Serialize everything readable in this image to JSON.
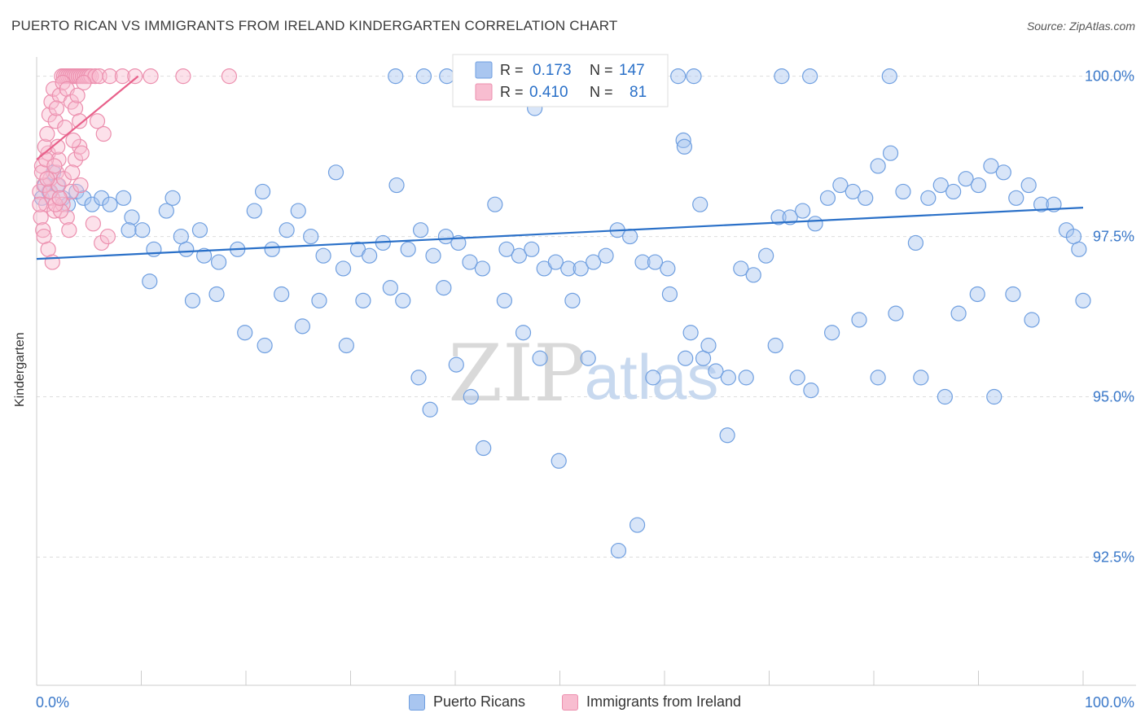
{
  "title": "PUERTO RICAN VS IMMIGRANTS FROM IRELAND KINDERGARTEN CORRELATION CHART",
  "source": "Source: ZipAtlas.com",
  "watermark": {
    "zip": "ZIP",
    "atlas": "atlas"
  },
  "chart_data": {
    "type": "scatter",
    "xlabel": "",
    "ylabel": "Kindergarten",
    "xlim": [
      0,
      100
    ],
    "ylim": [
      90.5,
      100.3
    ],
    "x_ticks": [
      "0.0%",
      "100.0%"
    ],
    "y_ticks": [
      {
        "value": 100.0,
        "label": "100.0%"
      },
      {
        "value": 97.5,
        "label": "97.5%"
      },
      {
        "value": 95.0,
        "label": "95.0%"
      },
      {
        "value": 92.5,
        "label": "92.5%"
      }
    ],
    "stats": [
      {
        "r_label": "R =",
        "r": "0.173",
        "n_label": "N =",
        "n": "147"
      },
      {
        "r_label": "R =",
        "r": "0.410",
        "n_label": "N =",
        "n": "81"
      }
    ],
    "series": [
      {
        "name": "Puerto Ricans",
        "color": "#6f9fe0",
        "fill": "#a9c6f0",
        "line_color": "#2a70c8",
        "trend": {
          "x": [
            0,
            100
          ],
          "y": [
            97.15,
            97.95
          ]
        },
        "points": [
          [
            0.5,
            98.1
          ],
          [
            0.8,
            98.3
          ],
          [
            1.2,
            98.2
          ],
          [
            1.6,
            98.5
          ],
          [
            2.0,
            98.3
          ],
          [
            2.5,
            98.1
          ],
          [
            3.0,
            98.0
          ],
          [
            3.8,
            98.2
          ],
          [
            4.5,
            98.1
          ],
          [
            5.3,
            98.0
          ],
          [
            6.2,
            98.1
          ],
          [
            7.0,
            98.0
          ],
          [
            8.3,
            98.1
          ],
          [
            9.1,
            97.8
          ],
          [
            8.8,
            97.6
          ],
          [
            10.1,
            97.6
          ],
          [
            11.2,
            97.3
          ],
          [
            12.4,
            97.9
          ],
          [
            13.0,
            98.1
          ],
          [
            13.8,
            97.5
          ],
          [
            14.3,
            97.3
          ],
          [
            15.6,
            97.6
          ],
          [
            16.0,
            97.2
          ],
          [
            17.4,
            97.1
          ],
          [
            19.2,
            97.3
          ],
          [
            20.8,
            97.9
          ],
          [
            21.6,
            98.2
          ],
          [
            22.5,
            97.3
          ],
          [
            23.9,
            97.6
          ],
          [
            25.0,
            97.9
          ],
          [
            26.2,
            97.5
          ],
          [
            27.4,
            97.2
          ],
          [
            28.6,
            98.5
          ],
          [
            29.3,
            97.0
          ],
          [
            30.7,
            97.3
          ],
          [
            31.8,
            97.2
          ],
          [
            33.1,
            97.4
          ],
          [
            34.4,
            98.3
          ],
          [
            35.5,
            97.3
          ],
          [
            36.7,
            97.6
          ],
          [
            37.9,
            97.2
          ],
          [
            39.1,
            97.5
          ],
          [
            40.3,
            97.4
          ],
          [
            41.4,
            97.1
          ],
          [
            42.6,
            97.0
          ],
          [
            43.8,
            98.0
          ],
          [
            44.9,
            97.3
          ],
          [
            46.1,
            97.2
          ],
          [
            47.3,
            97.3
          ],
          [
            48.5,
            97.0
          ],
          [
            49.6,
            97.1
          ],
          [
            50.8,
            97.0
          ],
          [
            52.0,
            97.0
          ],
          [
            53.2,
            97.1
          ],
          [
            54.4,
            97.2
          ],
          [
            55.5,
            97.6
          ],
          [
            56.7,
            97.5
          ],
          [
            57.9,
            97.1
          ],
          [
            59.1,
            97.1
          ],
          [
            60.3,
            97.0
          ],
          [
            61.8,
            99.0
          ],
          [
            62.5,
            96.0
          ],
          [
            63.7,
            95.6
          ],
          [
            64.9,
            95.4
          ],
          [
            66.1,
            95.3
          ],
          [
            67.3,
            97.0
          ],
          [
            68.5,
            96.9
          ],
          [
            69.7,
            97.2
          ],
          [
            70.9,
            97.8
          ],
          [
            72.0,
            97.8
          ],
          [
            73.2,
            97.9
          ],
          [
            74.4,
            97.7
          ],
          [
            75.6,
            98.1
          ],
          [
            76.8,
            98.3
          ],
          [
            78.0,
            98.2
          ],
          [
            79.2,
            98.1
          ],
          [
            80.4,
            98.6
          ],
          [
            81.6,
            98.8
          ],
          [
            82.8,
            98.2
          ],
          [
            84.0,
            97.4
          ],
          [
            85.2,
            98.1
          ],
          [
            86.4,
            98.3
          ],
          [
            87.6,
            98.2
          ],
          [
            88.8,
            98.4
          ],
          [
            90.0,
            98.3
          ],
          [
            91.2,
            98.6
          ],
          [
            92.4,
            98.5
          ],
          [
            93.6,
            98.1
          ],
          [
            94.8,
            98.3
          ],
          [
            96.0,
            98.0
          ],
          [
            97.2,
            98.0
          ],
          [
            98.4,
            97.6
          ],
          [
            99.1,
            97.5
          ],
          [
            99.6,
            97.3
          ],
          [
            100,
            96.5
          ],
          [
            10.8,
            96.8
          ],
          [
            14.9,
            96.5
          ],
          [
            17.2,
            96.6
          ],
          [
            19.9,
            96.0
          ],
          [
            21.8,
            95.8
          ],
          [
            23.4,
            96.6
          ],
          [
            25.4,
            96.1
          ],
          [
            27.0,
            96.5
          ],
          [
            29.6,
            95.8
          ],
          [
            31.2,
            96.5
          ],
          [
            33.8,
            96.7
          ],
          [
            35.0,
            96.5
          ],
          [
            36.5,
            95.3
          ],
          [
            37.6,
            94.8
          ],
          [
            38.9,
            96.7
          ],
          [
            40.1,
            95.5
          ],
          [
            41.5,
            95.0
          ],
          [
            42.7,
            94.2
          ],
          [
            44.7,
            96.5
          ],
          [
            46.5,
            96.0
          ],
          [
            48.1,
            95.6
          ],
          [
            49.9,
            94.0
          ],
          [
            51.2,
            96.5
          ],
          [
            52.7,
            95.6
          ],
          [
            55.6,
            92.6
          ],
          [
            57.4,
            93.0
          ],
          [
            58.9,
            95.3
          ],
          [
            60.5,
            96.6
          ],
          [
            62.0,
            95.6
          ],
          [
            64.2,
            95.8
          ],
          [
            66.0,
            94.4
          ],
          [
            67.8,
            95.3
          ],
          [
            70.6,
            95.8
          ],
          [
            72.7,
            95.3
          ],
          [
            74.0,
            95.1
          ],
          [
            76.0,
            96.0
          ],
          [
            78.6,
            96.2
          ],
          [
            80.4,
            95.3
          ],
          [
            82.1,
            96.3
          ],
          [
            84.5,
            95.3
          ],
          [
            86.8,
            95.0
          ],
          [
            88.1,
            96.3
          ],
          [
            89.9,
            96.6
          ],
          [
            91.5,
            95.0
          ],
          [
            93.3,
            96.6
          ],
          [
            95.1,
            96.2
          ],
          [
            34.3,
            100.0
          ],
          [
            37.0,
            100.0
          ],
          [
            39.2,
            100.0
          ],
          [
            44.1,
            100.0
          ],
          [
            51.0,
            100.0
          ],
          [
            61.3,
            100.0
          ],
          [
            62.8,
            100.0
          ],
          [
            71.2,
            100.0
          ],
          [
            73.9,
            100.0
          ],
          [
            81.5,
            100.0
          ],
          [
            47.6,
            99.5
          ],
          [
            61.9,
            98.9
          ],
          [
            63.4,
            98.0
          ]
        ]
      },
      {
        "name": "Immigrants from Ireland",
        "color": "#ec8fae",
        "fill": "#f8bdd0",
        "line_color": "#e8608a",
        "trend": {
          "x": [
            0,
            9.7
          ],
          "y": [
            98.7,
            100.0
          ]
        },
        "points": [
          [
            0.3,
            98.2
          ],
          [
            0.5,
            98.6
          ],
          [
            0.7,
            98.3
          ],
          [
            0.9,
            98.0
          ],
          [
            1.1,
            98.8
          ],
          [
            1.3,
            98.4
          ],
          [
            1.5,
            98.1
          ],
          [
            1.7,
            97.9
          ],
          [
            1.9,
            98.5
          ],
          [
            2.1,
            98.7
          ],
          [
            0.4,
            97.8
          ],
          [
            0.6,
            97.6
          ],
          [
            0.8,
            98.9
          ],
          [
            1.0,
            99.1
          ],
          [
            1.2,
            99.4
          ],
          [
            1.4,
            99.6
          ],
          [
            1.6,
            99.8
          ],
          [
            1.8,
            99.3
          ],
          [
            2.0,
            98.9
          ],
          [
            2.2,
            99.7
          ],
          [
            2.4,
            100.0
          ],
          [
            2.6,
            100.0
          ],
          [
            2.8,
            100.0
          ],
          [
            3.0,
            100.0
          ],
          [
            3.2,
            100.0
          ],
          [
            3.4,
            100.0
          ],
          [
            3.6,
            100.0
          ],
          [
            3.8,
            100.0
          ],
          [
            4.0,
            100.0
          ],
          [
            4.2,
            100.0
          ],
          [
            4.4,
            100.0
          ],
          [
            4.6,
            100.0
          ],
          [
            4.8,
            100.0
          ],
          [
            5.0,
            100.0
          ],
          [
            5.2,
            100.0
          ],
          [
            2.5,
            99.9
          ],
          [
            2.9,
            99.8
          ],
          [
            3.3,
            99.6
          ],
          [
            3.7,
            99.5
          ],
          [
            4.1,
            99.3
          ],
          [
            0.5,
            98.5
          ],
          [
            0.9,
            98.7
          ],
          [
            1.3,
            98.2
          ],
          [
            1.7,
            98.6
          ],
          [
            2.1,
            98.3
          ],
          [
            2.5,
            98.0
          ],
          [
            2.9,
            97.8
          ],
          [
            3.3,
            98.2
          ],
          [
            3.7,
            98.7
          ],
          [
            4.1,
            98.9
          ],
          [
            0.7,
            97.5
          ],
          [
            1.1,
            97.3
          ],
          [
            1.5,
            97.1
          ],
          [
            2.3,
            97.9
          ],
          [
            3.1,
            97.6
          ],
          [
            5.4,
            97.7
          ],
          [
            6.2,
            97.4
          ],
          [
            6.8,
            97.5
          ],
          [
            5.8,
            99.3
          ],
          [
            6.4,
            99.1
          ],
          [
            3.5,
            99.0
          ],
          [
            4.3,
            98.8
          ],
          [
            2.7,
            99.2
          ],
          [
            1.9,
            99.5
          ],
          [
            1.0,
            98.4
          ],
          [
            1.8,
            98.0
          ],
          [
            2.6,
            98.4
          ],
          [
            3.4,
            98.5
          ],
          [
            4.2,
            98.3
          ],
          [
            0.3,
            98.0
          ],
          [
            5.6,
            100.0
          ],
          [
            6.0,
            100.0
          ],
          [
            7.0,
            100.0
          ],
          [
            8.2,
            100.0
          ],
          [
            9.4,
            100.0
          ],
          [
            10.9,
            100.0
          ],
          [
            14.0,
            100.0
          ],
          [
            18.4,
            100.0
          ],
          [
            4.5,
            99.9
          ],
          [
            3.9,
            99.7
          ],
          [
            2.2,
            98.1
          ]
        ]
      }
    ]
  }
}
